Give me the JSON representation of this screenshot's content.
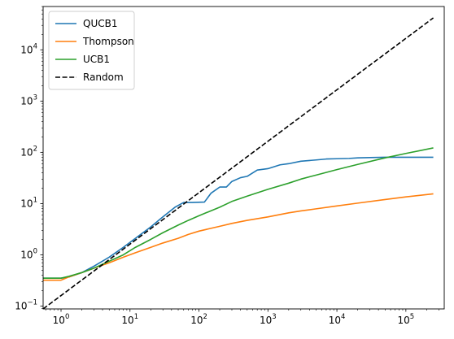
{
  "chart_data": {
    "type": "line",
    "title": "",
    "xlabel": "",
    "ylabel": "",
    "xscale": "log",
    "yscale": "log",
    "xlim": [
      0.55,
      360000
    ],
    "ylim": [
      0.088,
      70000
    ],
    "legend_position": "top-left",
    "x_ticks": [
      {
        "base": "10",
        "exp": "0"
      },
      {
        "base": "10",
        "exp": "1"
      },
      {
        "base": "10",
        "exp": "2"
      },
      {
        "base": "10",
        "exp": "3"
      },
      {
        "base": "10",
        "exp": "4"
      },
      {
        "base": "10",
        "exp": "5"
      }
    ],
    "y_ticks": [
      {
        "base": "10",
        "exp": "−1"
      },
      {
        "base": "10",
        "exp": "0"
      },
      {
        "base": "10",
        "exp": "1"
      },
      {
        "base": "10",
        "exp": "2"
      },
      {
        "base": "10",
        "exp": "3"
      },
      {
        "base": "10",
        "exp": "4"
      }
    ],
    "x_tick_values": [
      1,
      10,
      100,
      1000,
      10000,
      100000
    ],
    "y_tick_values": [
      0.1,
      1,
      10,
      100,
      1000,
      10000
    ],
    "series": [
      {
        "name": "QUCB1",
        "color": "#1f77b4",
        "dash": "solid",
        "x": [
          0.55,
          1,
          1.3,
          2,
          3,
          5,
          8,
          12,
          20,
          30,
          45,
          60,
          80,
          120,
          150,
          200,
          250,
          300,
          400,
          500,
          700,
          1000,
          1500,
          2000,
          3000,
          5000,
          7000,
          10000,
          15000,
          20000,
          30000,
          50000,
          100000,
          250000
        ],
        "y": [
          0.35,
          0.35,
          0.37,
          0.45,
          0.6,
          0.9,
          1.4,
          2.1,
          3.5,
          5.5,
          8.5,
          10.5,
          10.5,
          10.7,
          16,
          21,
          21,
          27,
          32,
          34,
          45,
          48,
          57,
          60,
          67,
          71,
          74,
          75,
          76,
          78,
          79,
          80,
          80,
          80
        ]
      },
      {
        "name": "Thompson",
        "color": "#ff7f0e",
        "dash": "solid",
        "x": [
          0.55,
          1,
          1.3,
          2,
          3,
          5,
          8,
          12,
          20,
          30,
          50,
          70,
          100,
          200,
          300,
          500,
          1000,
          2000,
          3000,
          5000,
          10000,
          20000,
          50000,
          100000,
          250000
        ],
        "y": [
          0.32,
          0.32,
          0.37,
          0.45,
          0.55,
          0.7,
          0.9,
          1.1,
          1.4,
          1.7,
          2.1,
          2.5,
          2.9,
          3.6,
          4.1,
          4.7,
          5.5,
          6.6,
          7.2,
          7.9,
          9.0,
          10.2,
          12.0,
          13.5,
          15.5
        ]
      },
      {
        "name": "UCB1",
        "color": "#2ca02c",
        "dash": "solid",
        "x": [
          0.55,
          1,
          1.3,
          2,
          3,
          5,
          8,
          12,
          20,
          30,
          50,
          70,
          100,
          200,
          300,
          500,
          1000,
          2000,
          3000,
          5000,
          10000,
          20000,
          50000,
          100000,
          250000
        ],
        "y": [
          0.35,
          0.35,
          0.38,
          0.45,
          0.55,
          0.75,
          1.0,
          1.4,
          2.0,
          2.7,
          3.8,
          4.7,
          5.8,
          8.5,
          11,
          14,
          19,
          25,
          30,
          36,
          46,
          58,
          78,
          95,
          122
        ]
      },
      {
        "name": "Random",
        "color": "#000000",
        "dash": "dashed",
        "x": [
          0.55,
          250000
        ],
        "y": [
          0.088,
          42000
        ]
      }
    ]
  }
}
